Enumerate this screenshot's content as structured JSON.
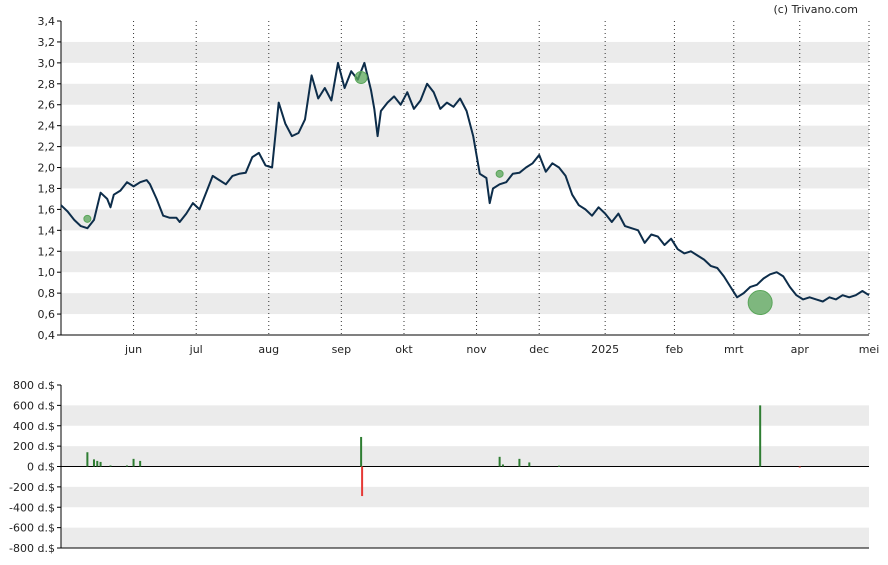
{
  "credit": "(c) Trivano.com",
  "colors": {
    "line": "#0d2d4a",
    "band": "#ebebeb",
    "volume_up": "#2e7d32",
    "volume_down": "#e53935",
    "bubble": "#5aa55a"
  },
  "chart_data": [
    {
      "type": "line",
      "title": "",
      "xlabel": "",
      "ylabel": "",
      "ylim": [
        0.4,
        3.4
      ],
      "yticks": [
        "3,4",
        "3,2",
        "3,0",
        "2,8",
        "2,6",
        "2,4",
        "2,2",
        "2,0",
        "1,8",
        "1,6",
        "1,4",
        "1,2",
        "1,0",
        "0,8",
        "0,6",
        "0,4"
      ],
      "xlim": [
        0,
        245
      ],
      "xticks": [
        {
          "label": "jun",
          "x": 22
        },
        {
          "label": "jul",
          "x": 41
        },
        {
          "label": "aug",
          "x": 63
        },
        {
          "label": "sep",
          "x": 85
        },
        {
          "label": "okt",
          "x": 104
        },
        {
          "label": "nov",
          "x": 126
        },
        {
          "label": "dec",
          "x": 145
        },
        {
          "label": "2025",
          "x": 165
        },
        {
          "label": "feb",
          "x": 186
        },
        {
          "label": "mrt",
          "x": 204
        },
        {
          "label": "apr",
          "x": 224
        },
        {
          "label": "mei",
          "x": 245
        }
      ],
      "grid": {
        "vertical": "dotted",
        "horizontal_bands": true
      },
      "series": [
        {
          "points": [
            [
              0,
              1.64
            ],
            [
              2,
              1.58
            ],
            [
              4,
              1.5
            ],
            [
              6,
              1.44
            ],
            [
              8,
              1.42
            ],
            [
              10,
              1.5
            ],
            [
              12,
              1.76
            ],
            [
              14,
              1.7
            ],
            [
              15,
              1.62
            ],
            [
              16,
              1.74
            ],
            [
              18,
              1.78
            ],
            [
              20,
              1.86
            ],
            [
              22,
              1.82
            ],
            [
              24,
              1.86
            ],
            [
              26,
              1.88
            ],
            [
              27,
              1.84
            ],
            [
              29,
              1.7
            ],
            [
              31,
              1.54
            ],
            [
              33,
              1.52
            ],
            [
              35,
              1.52
            ],
            [
              36,
              1.48
            ],
            [
              38,
              1.56
            ],
            [
              40,
              1.66
            ],
            [
              42,
              1.6
            ],
            [
              44,
              1.76
            ],
            [
              46,
              1.92
            ],
            [
              48,
              1.88
            ],
            [
              50,
              1.84
            ],
            [
              52,
              1.92
            ],
            [
              54,
              1.94
            ],
            [
              56,
              1.95
            ],
            [
              58,
              2.1
            ],
            [
              60,
              2.14
            ],
            [
              62,
              2.02
            ],
            [
              64,
              2.0
            ],
            [
              66,
              2.62
            ],
            [
              68,
              2.42
            ],
            [
              70,
              2.3
            ],
            [
              72,
              2.33
            ],
            [
              74,
              2.46
            ],
            [
              76,
              2.88
            ],
            [
              78,
              2.66
            ],
            [
              80,
              2.76
            ],
            [
              82,
              2.64
            ],
            [
              84,
              3.0
            ],
            [
              86,
              2.76
            ],
            [
              88,
              2.92
            ],
            [
              90,
              2.84
            ],
            [
              92,
              3.0
            ],
            [
              94,
              2.74
            ],
            [
              95,
              2.56
            ],
            [
              96,
              2.3
            ],
            [
              97,
              2.54
            ],
            [
              99,
              2.62
            ],
            [
              101,
              2.68
            ],
            [
              103,
              2.6
            ],
            [
              105,
              2.72
            ],
            [
              107,
              2.56
            ],
            [
              109,
              2.64
            ],
            [
              111,
              2.8
            ],
            [
              113,
              2.72
            ],
            [
              115,
              2.56
            ],
            [
              117,
              2.62
            ],
            [
              119,
              2.58
            ],
            [
              121,
              2.66
            ],
            [
              123,
              2.54
            ],
            [
              125,
              2.3
            ],
            [
              127,
              1.94
            ],
            [
              129,
              1.9
            ],
            [
              130,
              1.66
            ],
            [
              131,
              1.8
            ],
            [
              133,
              1.84
            ],
            [
              135,
              1.86
            ],
            [
              137,
              1.94
            ],
            [
              139,
              1.95
            ],
            [
              141,
              2.0
            ],
            [
              143,
              2.04
            ],
            [
              145,
              2.12
            ],
            [
              147,
              1.96
            ],
            [
              149,
              2.04
            ],
            [
              151,
              2.0
            ],
            [
              153,
              1.92
            ],
            [
              155,
              1.74
            ],
            [
              157,
              1.64
            ],
            [
              159,
              1.6
            ],
            [
              161,
              1.54
            ],
            [
              163,
              1.62
            ],
            [
              165,
              1.56
            ],
            [
              167,
              1.48
            ],
            [
              169,
              1.56
            ],
            [
              171,
              1.44
            ],
            [
              173,
              1.42
            ],
            [
              175,
              1.4
            ],
            [
              177,
              1.28
            ],
            [
              179,
              1.36
            ],
            [
              181,
              1.34
            ],
            [
              183,
              1.26
            ],
            [
              185,
              1.32
            ],
            [
              187,
              1.22
            ],
            [
              189,
              1.18
            ],
            [
              191,
              1.2
            ],
            [
              193,
              1.16
            ],
            [
              195,
              1.12
            ],
            [
              197,
              1.06
            ],
            [
              199,
              1.04
            ],
            [
              201,
              0.96
            ],
            [
              203,
              0.86
            ],
            [
              205,
              0.76
            ],
            [
              207,
              0.8
            ],
            [
              209,
              0.86
            ],
            [
              211,
              0.88
            ],
            [
              213,
              0.94
            ],
            [
              215,
              0.98
            ],
            [
              217,
              1.0
            ],
            [
              219,
              0.96
            ],
            [
              221,
              0.86
            ],
            [
              223,
              0.78
            ],
            [
              225,
              0.74
            ],
            [
              227,
              0.76
            ],
            [
              229,
              0.74
            ],
            [
              231,
              0.72
            ],
            [
              233,
              0.76
            ],
            [
              235,
              0.74
            ],
            [
              237,
              0.78
            ],
            [
              239,
              0.76
            ],
            [
              241,
              0.78
            ],
            [
              243,
              0.82
            ],
            [
              245,
              0.78
            ]
          ]
        }
      ],
      "markers": [
        {
          "x": 8,
          "y": 1.51,
          "size": "small"
        },
        {
          "x": 91,
          "y": 2.86,
          "size": "medium"
        },
        {
          "x": 133,
          "y": 1.94,
          "size": "small"
        },
        {
          "x": 212,
          "y": 0.71,
          "size": "large"
        }
      ]
    },
    {
      "type": "bar",
      "title": "",
      "xlabel": "",
      "ylabel": "",
      "ylim": [
        -800,
        800
      ],
      "yticks": [
        "800 d.$",
        "600 d.$",
        "400 d.$",
        "200 d.$",
        "0 d.$",
        "-200 d.$",
        "-400 d.$",
        "-600 d.$",
        "-800 d.$"
      ],
      "values": [
        {
          "x": 8,
          "v": 140
        },
        {
          "x": 10,
          "v": 70
        },
        {
          "x": 11,
          "v": 55
        },
        {
          "x": 12,
          "v": 45
        },
        {
          "x": 15,
          "v": 10
        },
        {
          "x": 20,
          "v": 10
        },
        {
          "x": 22,
          "v": 75
        },
        {
          "x": 24,
          "v": 55
        },
        {
          "x": 91,
          "v": 290
        },
        {
          "x": 91.3,
          "v": -290
        },
        {
          "x": 133,
          "v": 95
        },
        {
          "x": 134,
          "v": 20
        },
        {
          "x": 139,
          "v": 75
        },
        {
          "x": 142,
          "v": 40
        },
        {
          "x": 151,
          "v": 8
        },
        {
          "x": 212,
          "v": 600
        },
        {
          "x": 224,
          "v": -10
        }
      ]
    }
  ]
}
